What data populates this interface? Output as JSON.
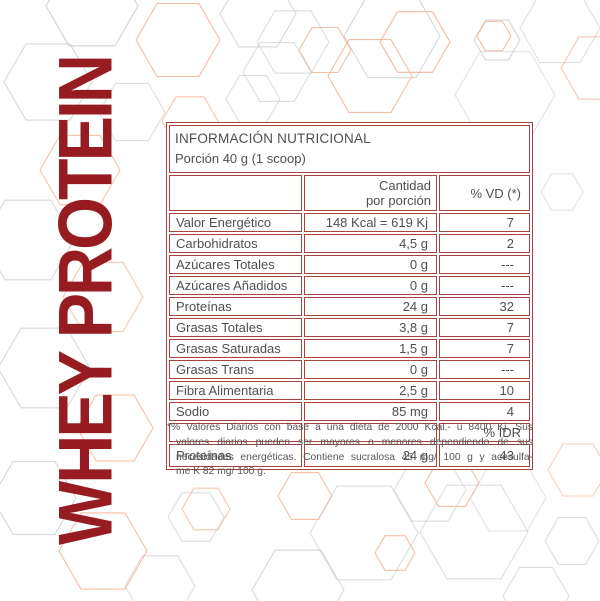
{
  "brand": {
    "vertical_title": "WHEY PROTEIN"
  },
  "colors": {
    "accent_red": "#971c22",
    "table_border_red": "#a8443f",
    "text_gray": "#4f4f52",
    "hex_gray": "#c8c8cd",
    "hex_salmon": "#f2ae8d"
  },
  "nutrition_table": {
    "title": "INFORMACIÓN NUTRICIONAL",
    "serving": "Porción 40 g (1 scoop)",
    "amount_header_line1": "Cantidad",
    "amount_header_line2": "por porción",
    "vd_header": "% VD (*)",
    "rows": [
      {
        "label": "Valor Energético",
        "amount": "148 Kcal = 619 Kj",
        "vd": "7"
      },
      {
        "label": "Carbohidratos",
        "amount": "4,5 g",
        "vd": "2"
      },
      {
        "label": "Azúcares Totales",
        "amount": "0 g",
        "vd": "---"
      },
      {
        "label": "Azúcares Añadidos",
        "amount": "0 g",
        "vd": "---"
      },
      {
        "label": "Proteínas",
        "amount": "24 g",
        "vd": "32"
      },
      {
        "label": "Grasas Totales",
        "amount": "3,8 g",
        "vd": "7"
      },
      {
        "label": "Grasas Saturadas",
        "amount": "1,5 g",
        "vd": "7"
      },
      {
        "label": "Grasas Trans",
        "amount": "0 g",
        "vd": "---"
      },
      {
        "label": "Fibra Alimentaria",
        "amount": "2,5 g",
        "vd": "10"
      },
      {
        "label": "Sodio",
        "amount": "85 mg",
        "vd": "4"
      }
    ],
    "idr_header": "% IDR",
    "idr_row": {
      "label": "Proteínas",
      "amount": "24 g",
      "idr": "43"
    }
  },
  "footnote": {
    "lines": [
      "*% Valores Diarios con base a una dieta de 2000 Kcal.- u 8400 Kj. Sus",
      "valores diarios pueden ser mayores o menores dependiendo de sus",
      "necesidades energéticas. Contiene sucralosa 45 mg/ 100 g y acesulfa-",
      "me K 82 mg/ 100 g."
    ]
  }
}
